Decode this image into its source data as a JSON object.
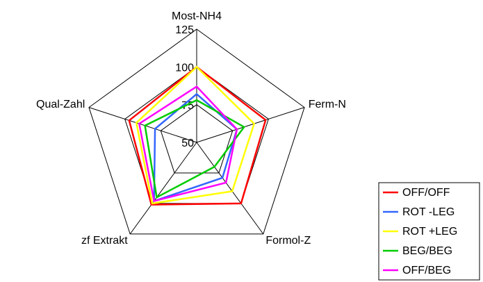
{
  "chart_data": {
    "type": "radar",
    "categories": [
      "Most-NH4",
      "Ferm-N",
      "Formol-Z",
      "zf Extrakt",
      "Qual-Zahl"
    ],
    "ylim": [
      50,
      125
    ],
    "yticks": [
      50,
      75,
      100,
      125
    ],
    "series": [
      {
        "name": "OFF/OFF",
        "color": "#ff0000",
        "values": [
          100,
          98,
          100,
          101,
          97
        ]
      },
      {
        "name": "ROT -LEG",
        "color": "#3366ff",
        "values": [
          82,
          78,
          79,
          98,
          79
        ]
      },
      {
        "name": "ROT +LEG",
        "color": "#ffff00",
        "values": [
          100,
          90,
          90,
          100,
          92
        ]
      },
      {
        "name": "BEG/BEG",
        "color": "#00cc00",
        "values": [
          78,
          83,
          70,
          95,
          86
        ]
      },
      {
        "name": "OFF/BEG",
        "color": "#ff00ff",
        "values": [
          87,
          78,
          83,
          98,
          90
        ]
      }
    ],
    "legend": "bottom-right"
  }
}
